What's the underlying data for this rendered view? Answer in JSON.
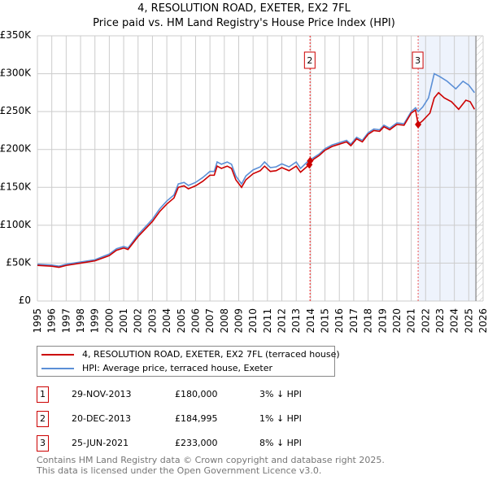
{
  "title": "4, RESOLUTION ROAD, EXETER, EX2 7FL",
  "subtitle": "Price paid vs. HM Land Registry's House Price Index (HPI)",
  "chart_data": {
    "type": "line",
    "xlim": [
      1995,
      2026
    ],
    "ylim": [
      0,
      350000
    ],
    "x_ticks": [
      "1995",
      "1996",
      "1997",
      "1998",
      "1999",
      "2000",
      "2001",
      "2002",
      "2003",
      "2004",
      "2005",
      "2006",
      "2007",
      "2008",
      "2009",
      "2010",
      "2011",
      "2012",
      "2013",
      "2014",
      "2015",
      "2016",
      "2017",
      "2018",
      "2019",
      "2020",
      "2021",
      "2022",
      "2023",
      "2024",
      "2025",
      "2026"
    ],
    "y_ticks": [
      {
        "v": 0,
        "label": "£0"
      },
      {
        "v": 50000,
        "label": "£50K"
      },
      {
        "v": 100000,
        "label": "£100K"
      },
      {
        "v": 150000,
        "label": "£150K"
      },
      {
        "v": 200000,
        "label": "£200K"
      },
      {
        "v": 250000,
        "label": "£250K"
      },
      {
        "v": 300000,
        "label": "£300K"
      },
      {
        "v": 350000,
        "label": "£350K"
      }
    ],
    "grid": true,
    "shaded_range": [
      2021.48,
      2025.5
    ],
    "hatched_from": 2025.5,
    "series": [
      {
        "name": "4, RESOLUTION ROAD, EXETER, EX2 7FL (terraced house)",
        "color": "#cc0000",
        "points": [
          [
            1995,
            47000
          ],
          [
            1996,
            46000
          ],
          [
            1996.5,
            44500
          ],
          [
            1997,
            47000
          ],
          [
            1998,
            50000
          ],
          [
            1999,
            53000
          ],
          [
            2000,
            60000
          ],
          [
            2000.5,
            67000
          ],
          [
            2001,
            70000
          ],
          [
            2001.3,
            68000
          ],
          [
            2002,
            85000
          ],
          [
            2003,
            105000
          ],
          [
            2003.5,
            118000
          ],
          [
            2004,
            128000
          ],
          [
            2004.5,
            136000
          ],
          [
            2004.8,
            150000
          ],
          [
            2005.2,
            152000
          ],
          [
            2005.5,
            148000
          ],
          [
            2006,
            152000
          ],
          [
            2006.5,
            158000
          ],
          [
            2007,
            166000
          ],
          [
            2007.3,
            166000
          ],
          [
            2007.5,
            178000
          ],
          [
            2007.8,
            175000
          ],
          [
            2008.2,
            178000
          ],
          [
            2008.5,
            175000
          ],
          [
            2008.8,
            160000
          ],
          [
            2009.2,
            150000
          ],
          [
            2009.5,
            160000
          ],
          [
            2010,
            168000
          ],
          [
            2010.5,
            172000
          ],
          [
            2010.8,
            178000
          ],
          [
            2011.2,
            171000
          ],
          [
            2011.6,
            172000
          ],
          [
            2012,
            176000
          ],
          [
            2012.5,
            172000
          ],
          [
            2013,
            178000
          ],
          [
            2013.3,
            170000
          ],
          [
            2013.91,
            180000
          ],
          [
            2014.2,
            187000
          ],
          [
            2014.6,
            192000
          ],
          [
            2015,
            199000
          ],
          [
            2015.5,
            204000
          ],
          [
            2016,
            207000
          ],
          [
            2016.5,
            210000
          ],
          [
            2016.8,
            205000
          ],
          [
            2017.2,
            214000
          ],
          [
            2017.6,
            210000
          ],
          [
            2018,
            220000
          ],
          [
            2018.4,
            225000
          ],
          [
            2018.8,
            224000
          ],
          [
            2019.1,
            230000
          ],
          [
            2019.5,
            226000
          ],
          [
            2020,
            233000
          ],
          [
            2020.5,
            232000
          ],
          [
            2021,
            248000
          ],
          [
            2021.3,
            252000
          ],
          [
            2021.48,
            233000
          ],
          [
            2021.8,
            238000
          ],
          [
            2022.3,
            248000
          ],
          [
            2022.6,
            268000
          ],
          [
            2022.9,
            275000
          ],
          [
            2023.3,
            268000
          ],
          [
            2023.8,
            263000
          ],
          [
            2024.3,
            253000
          ],
          [
            2024.8,
            265000
          ],
          [
            2025.1,
            263000
          ],
          [
            2025.4,
            253000
          ]
        ]
      },
      {
        "name": "HPI: Average price, terraced house, Exeter",
        "color": "#5b8fd6",
        "points": [
          [
            1995,
            48500
          ],
          [
            1996,
            47500
          ],
          [
            1996.5,
            46000
          ],
          [
            1997,
            48500
          ],
          [
            1998,
            51500
          ],
          [
            1999,
            54500
          ],
          [
            2000,
            62000
          ],
          [
            2000.5,
            69000
          ],
          [
            2001,
            72000
          ],
          [
            2001.3,
            70000
          ],
          [
            2002,
            87500
          ],
          [
            2003,
            108000
          ],
          [
            2003.5,
            121500
          ],
          [
            2004,
            132000
          ],
          [
            2004.5,
            140000
          ],
          [
            2004.8,
            154500
          ],
          [
            2005.2,
            156500
          ],
          [
            2005.5,
            152500
          ],
          [
            2006,
            156500
          ],
          [
            2006.5,
            163000
          ],
          [
            2007,
            171000
          ],
          [
            2007.3,
            171000
          ],
          [
            2007.5,
            183500
          ],
          [
            2007.8,
            180500
          ],
          [
            2008.2,
            183500
          ],
          [
            2008.5,
            180500
          ],
          [
            2008.8,
            165000
          ],
          [
            2009.2,
            154500
          ],
          [
            2009.5,
            165000
          ],
          [
            2010,
            173000
          ],
          [
            2010.5,
            177000
          ],
          [
            2010.8,
            183500
          ],
          [
            2011.2,
            176000
          ],
          [
            2011.6,
            177000
          ],
          [
            2012,
            181000
          ],
          [
            2012.5,
            177000
          ],
          [
            2013,
            183500
          ],
          [
            2013.3,
            175000
          ],
          [
            2013.91,
            186000
          ],
          [
            2014.2,
            189000
          ],
          [
            2014.6,
            194000
          ],
          [
            2015,
            201000
          ],
          [
            2015.5,
            206000
          ],
          [
            2016,
            209000
          ],
          [
            2016.5,
            212000
          ],
          [
            2016.8,
            207000
          ],
          [
            2017.2,
            216000
          ],
          [
            2017.6,
            212000
          ],
          [
            2018,
            222000
          ],
          [
            2018.4,
            227000
          ],
          [
            2018.8,
            226000
          ],
          [
            2019.1,
            232000
          ],
          [
            2019.5,
            228000
          ],
          [
            2020,
            235000
          ],
          [
            2020.5,
            234000
          ],
          [
            2021,
            250000
          ],
          [
            2021.3,
            255000
          ],
          [
            2021.48,
            250000
          ],
          [
            2021.8,
            256000
          ],
          [
            2022.2,
            268000
          ],
          [
            2022.6,
            300000
          ],
          [
            2023,
            296000
          ],
          [
            2023.5,
            290000
          ],
          [
            2024.1,
            280000
          ],
          [
            2024.6,
            290000
          ],
          [
            2025,
            285000
          ],
          [
            2025.4,
            275000
          ]
        ]
      }
    ],
    "sale_markers": [
      {
        "x": 2013.91,
        "y": 180000
      },
      {
        "x": 2013.97,
        "y": 184995
      },
      {
        "x": 2021.48,
        "y": 233000
      }
    ],
    "annotations": [
      {
        "label": "2",
        "x": 2013.97
      },
      {
        "label": "3",
        "x": 2021.48
      }
    ]
  },
  "legend": {
    "property": "4, RESOLUTION ROAD, EXETER, EX2 7FL (terraced house)",
    "hpi": "HPI: Average price, terraced house, Exeter"
  },
  "sales": [
    {
      "num": "1",
      "date": "29-NOV-2013",
      "price": "£180,000",
      "delta": "3% ↓ HPI"
    },
    {
      "num": "2",
      "date": "20-DEC-2013",
      "price": "£184,995",
      "delta": "1% ↓ HPI"
    },
    {
      "num": "3",
      "date": "25-JUN-2021",
      "price": "£233,000",
      "delta": "8% ↓ HPI"
    }
  ],
  "footer": {
    "line1": "Contains HM Land Registry data © Crown copyright and database right 2025.",
    "line2": "This data is licensed under the Open Government Licence v3.0."
  },
  "colors": {
    "property": "#cc0000",
    "hpi": "#5b8fd6",
    "shade": "#eef3fc"
  }
}
